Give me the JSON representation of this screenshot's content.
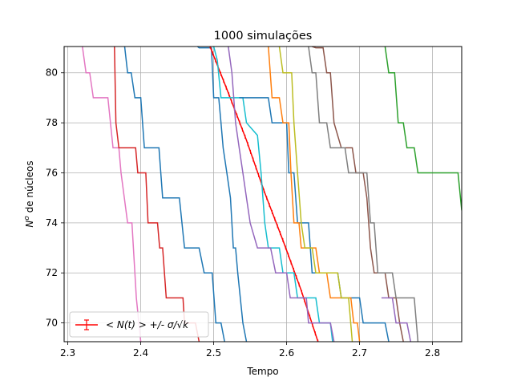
{
  "chart_data": {
    "type": "line",
    "title": "1000 simulações",
    "xlabel": "Tempo",
    "ylabel_parts": {
      "prefix": "N",
      "sup": "o",
      "rest": " de núcleos"
    },
    "xlim": [
      2.295,
      2.84
    ],
    "ylim": [
      69.25,
      81.05
    ],
    "x_ticks": [
      2.3,
      2.4,
      2.5,
      2.6,
      2.7,
      2.8
    ],
    "x_tick_labels": [
      "2.3",
      "2.4",
      "2.5",
      "2.6",
      "2.7",
      "2.8"
    ],
    "y_ticks": [
      70,
      72,
      74,
      76,
      78,
      80
    ],
    "y_tick_labels": [
      "70",
      "72",
      "74",
      "76",
      "78",
      "80"
    ],
    "grid": true,
    "legend": {
      "position": "lower-left",
      "label": "< N(t) >  +/- σ/√k"
    },
    "series": [
      {
        "color": "#e377c2",
        "points": [
          [
            2.32,
            81.05
          ],
          [
            2.325,
            80
          ],
          [
            2.33,
            80
          ],
          [
            2.335,
            79
          ],
          [
            2.355,
            79
          ],
          [
            2.362,
            77
          ],
          [
            2.37,
            77
          ],
          [
            2.373,
            76
          ],
          [
            2.382,
            74
          ],
          [
            2.388,
            74
          ],
          [
            2.394,
            71
          ],
          [
            2.4,
            69.25
          ]
        ]
      },
      {
        "color": "#d62728",
        "points": [
          [
            2.364,
            81.05
          ],
          [
            2.366,
            78
          ],
          [
            2.37,
            77
          ],
          [
            2.393,
            77
          ],
          [
            2.396,
            76
          ],
          [
            2.407,
            76
          ],
          [
            2.41,
            74
          ],
          [
            2.423,
            74
          ],
          [
            2.426,
            73
          ],
          [
            2.43,
            73
          ],
          [
            2.435,
            71
          ],
          [
            2.458,
            71
          ],
          [
            2.46,
            70
          ],
          [
            2.475,
            70
          ],
          [
            2.48,
            69.25
          ]
        ]
      },
      {
        "color": "#1f77b4",
        "points": [
          [
            2.378,
            81.05
          ],
          [
            2.382,
            80
          ],
          [
            2.387,
            80
          ],
          [
            2.392,
            79
          ],
          [
            2.4,
            79
          ],
          [
            2.405,
            77
          ],
          [
            2.425,
            77
          ],
          [
            2.43,
            75
          ],
          [
            2.453,
            75
          ],
          [
            2.46,
            73
          ],
          [
            2.48,
            73
          ],
          [
            2.487,
            72
          ],
          [
            2.498,
            72
          ],
          [
            2.503,
            70
          ],
          [
            2.51,
            70
          ],
          [
            2.515,
            69.25
          ]
        ]
      },
      {
        "color": "#1f77b4",
        "points": [
          [
            2.478,
            81.05
          ],
          [
            2.48,
            81
          ],
          [
            2.497,
            81
          ],
          [
            2.5,
            79
          ],
          [
            2.507,
            79
          ],
          [
            2.51,
            78
          ],
          [
            2.513,
            77
          ],
          [
            2.518,
            76
          ],
          [
            2.523,
            75
          ],
          [
            2.527,
            73
          ],
          [
            2.53,
            73
          ],
          [
            2.533,
            72
          ],
          [
            2.54,
            70
          ],
          [
            2.545,
            69.25
          ]
        ]
      },
      {
        "color": "#ff0000",
        "marker": true,
        "points": [
          [
            2.495,
            81.05
          ],
          [
            2.52,
            79.2
          ],
          [
            2.545,
            77.3
          ],
          [
            2.57,
            75.2
          ],
          [
            2.595,
            73.3
          ],
          [
            2.62,
            71.3
          ],
          [
            2.643,
            69.25
          ]
        ]
      },
      {
        "color": "#17becf",
        "points": [
          [
            2.5,
            81.05
          ],
          [
            2.505,
            80.5
          ],
          [
            2.51,
            79
          ],
          [
            2.54,
            79
          ],
          [
            2.545,
            78
          ],
          [
            2.56,
            77.5
          ],
          [
            2.565,
            76
          ],
          [
            2.57,
            74
          ],
          [
            2.575,
            73
          ],
          [
            2.59,
            73
          ],
          [
            2.595,
            72
          ],
          [
            2.61,
            72
          ],
          [
            2.615,
            71
          ],
          [
            2.64,
            71
          ],
          [
            2.645,
            70
          ],
          [
            2.66,
            70
          ],
          [
            2.663,
            69.25
          ]
        ]
      },
      {
        "color": "#9467bd",
        "points": [
          [
            2.52,
            81.05
          ],
          [
            2.525,
            80
          ],
          [
            2.53,
            78
          ],
          [
            2.535,
            77
          ],
          [
            2.54,
            76
          ],
          [
            2.545,
            75
          ],
          [
            2.55,
            74
          ],
          [
            2.56,
            73
          ],
          [
            2.578,
            73
          ],
          [
            2.585,
            72
          ],
          [
            2.6,
            72
          ],
          [
            2.605,
            71
          ],
          [
            2.627,
            71
          ],
          [
            2.63,
            70
          ],
          [
            2.66,
            70
          ],
          [
            2.665,
            69.25
          ]
        ]
      },
      {
        "color": "#1f77b4",
        "points": [
          [
            2.535,
            79
          ],
          [
            2.575,
            79
          ],
          [
            2.58,
            78
          ],
          [
            2.6,
            78
          ],
          [
            2.603,
            76
          ],
          [
            2.61,
            76
          ],
          [
            2.615,
            74
          ],
          [
            2.63,
            74
          ],
          [
            2.635,
            72
          ],
          [
            2.67,
            72
          ],
          [
            2.675,
            71
          ],
          [
            2.7,
            71
          ],
          [
            2.705,
            70
          ],
          [
            2.735,
            70
          ],
          [
            2.74,
            69.25
          ]
        ]
      },
      {
        "color": "#ff7f0e",
        "points": [
          [
            2.575,
            81.05
          ],
          [
            2.58,
            79
          ],
          [
            2.59,
            79
          ],
          [
            2.595,
            78
          ],
          [
            2.603,
            78
          ],
          [
            2.606,
            76
          ],
          [
            2.61,
            74
          ],
          [
            2.617,
            74
          ],
          [
            2.62,
            73
          ],
          [
            2.64,
            73
          ],
          [
            2.645,
            72
          ],
          [
            2.655,
            72
          ],
          [
            2.66,
            71
          ],
          [
            2.688,
            71
          ],
          [
            2.692,
            70
          ],
          [
            2.697,
            70
          ],
          [
            2.7,
            69.25
          ]
        ]
      },
      {
        "color": "#bcbd22",
        "points": [
          [
            2.59,
            81.05
          ],
          [
            2.595,
            80
          ],
          [
            2.607,
            80
          ],
          [
            2.61,
            78
          ],
          [
            2.615,
            76
          ],
          [
            2.62,
            74
          ],
          [
            2.625,
            73
          ],
          [
            2.635,
            73
          ],
          [
            2.64,
            72
          ],
          [
            2.67,
            72
          ],
          [
            2.675,
            71
          ],
          [
            2.685,
            71
          ],
          [
            2.69,
            69.25
          ]
        ]
      },
      {
        "color": "#8c564b",
        "points": [
          [
            2.635,
            81.05
          ],
          [
            2.64,
            81
          ],
          [
            2.65,
            81
          ],
          [
            2.655,
            80
          ],
          [
            2.66,
            80
          ],
          [
            2.665,
            78
          ],
          [
            2.675,
            77
          ],
          [
            2.69,
            77
          ],
          [
            2.695,
            76
          ],
          [
            2.705,
            76
          ],
          [
            2.71,
            75
          ],
          [
            2.715,
            73
          ],
          [
            2.72,
            72
          ],
          [
            2.735,
            72
          ],
          [
            2.74,
            71
          ],
          [
            2.75,
            71
          ],
          [
            2.755,
            70
          ],
          [
            2.76,
            69.25
          ]
        ]
      },
      {
        "color": "#7f7f7f",
        "points": [
          [
            2.63,
            81.05
          ],
          [
            2.635,
            80
          ],
          [
            2.64,
            80
          ],
          [
            2.645,
            78
          ],
          [
            2.655,
            78
          ],
          [
            2.66,
            77
          ],
          [
            2.68,
            77
          ],
          [
            2.685,
            76
          ],
          [
            2.71,
            76
          ],
          [
            2.715,
            74
          ],
          [
            2.72,
            74
          ],
          [
            2.725,
            72
          ],
          [
            2.745,
            72
          ],
          [
            2.75,
            71
          ],
          [
            2.775,
            71
          ],
          [
            2.78,
            69.25
          ]
        ]
      },
      {
        "color": "#9467bd",
        "points": [
          [
            2.73,
            71
          ],
          [
            2.745,
            71
          ],
          [
            2.75,
            70
          ],
          [
            2.765,
            70
          ],
          [
            2.77,
            69.25
          ]
        ]
      },
      {
        "color": "#2ca02c",
        "points": [
          [
            2.735,
            81.05
          ],
          [
            2.74,
            80
          ],
          [
            2.748,
            80
          ],
          [
            2.753,
            78
          ],
          [
            2.76,
            78
          ],
          [
            2.765,
            77
          ],
          [
            2.775,
            77
          ],
          [
            2.78,
            76
          ],
          [
            2.835,
            76
          ],
          [
            2.84,
            74.5
          ]
        ]
      }
    ]
  }
}
